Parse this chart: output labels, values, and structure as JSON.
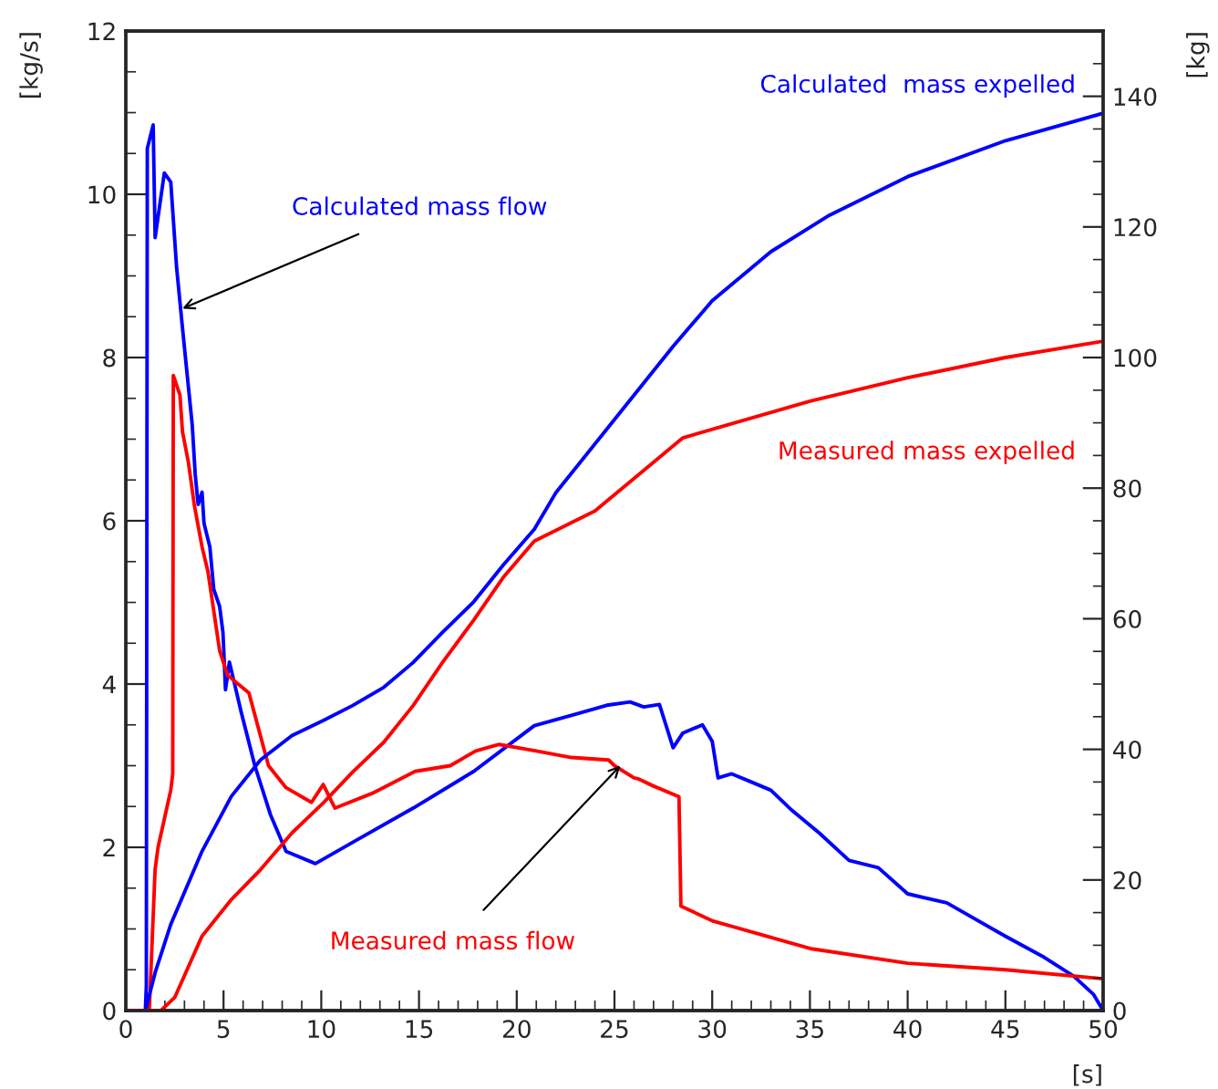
{
  "chart_data": {
    "type": "line",
    "xlabel": "[s]",
    "ylabel": "[kg/s]",
    "y2label": "[kg]",
    "xlim": [
      0,
      50
    ],
    "xticks": [
      0,
      5,
      10,
      15,
      20,
      25,
      30,
      35,
      40,
      45,
      50
    ],
    "ylim": [
      0,
      12
    ],
    "yticks": [
      0,
      2,
      4,
      6,
      8,
      10,
      12
    ],
    "y2lim": [
      0,
      150
    ],
    "y2ticks": [
      0,
      20,
      40,
      60,
      80,
      100,
      120,
      140
    ],
    "grid": false,
    "legend": false,
    "series": [
      {
        "color": "#0000ff",
        "x": [
          0,
          1.0,
          1.05,
          1.1,
          1.4,
          1.5,
          1.97,
          2.3,
          2.6,
          2.9,
          3.4,
          3.55,
          3.7,
          3.9,
          4.0,
          4.3,
          4.5,
          4.8,
          4.97,
          5.1,
          5.3,
          5.9,
          6.6,
          7.4,
          8.2,
          9.7,
          11.6,
          14.7,
          17.8,
          20.9,
          23,
          24.6,
          25.8,
          26.5,
          27.3,
          28,
          28.5,
          29.5,
          30,
          30.3,
          31,
          32,
          33,
          34,
          35.5,
          37,
          38.5,
          40,
          42,
          45,
          47,
          48.5,
          49.5,
          50
        ],
        "values": [
          0,
          0,
          0.3,
          10.56,
          10.85,
          9.47,
          10.26,
          10.15,
          9.1,
          8.36,
          7.17,
          6.57,
          6.2,
          6.35,
          5.97,
          5.68,
          5.16,
          4.95,
          4.63,
          3.93,
          4.27,
          3.66,
          3.0,
          2.4,
          1.95,
          1.8,
          2.06,
          2.48,
          2.93,
          3.49,
          3.63,
          3.74,
          3.78,
          3.72,
          3.75,
          3.22,
          3.4,
          3.5,
          3.3,
          2.85,
          2.9,
          2.8,
          2.7,
          2.47,
          2.17,
          1.84,
          1.75,
          1.43,
          1.32,
          0.91,
          0.65,
          0.42,
          0.2,
          0
        ]
      },
      {
        "color": "#ff0000",
        "x": [
          0,
          1.2,
          1.5,
          1.65,
          2.3,
          2.4,
          2.43,
          2.77,
          2.9,
          3.2,
          3.5,
          3.9,
          4.2,
          4.8,
          5.2,
          6.3,
          7.3,
          8.2,
          9.5,
          10.1,
          10.7,
          12.6,
          14.8,
          16.6,
          17.9,
          19.1,
          21,
          22.8,
          24.7,
          25,
          26,
          26.2,
          27,
          28.3,
          28.4,
          30,
          35,
          40,
          45,
          50
        ],
        "values": [
          0,
          0,
          1.73,
          2.0,
          2.7,
          2.9,
          7.78,
          7.54,
          7.09,
          6.72,
          6.2,
          5.68,
          5.38,
          4.41,
          4.11,
          3.89,
          3.0,
          2.73,
          2.55,
          2.77,
          2.48,
          2.66,
          2.93,
          3.0,
          3.18,
          3.26,
          3.18,
          3.1,
          3.07,
          3.0,
          2.85,
          2.84,
          2.75,
          2.62,
          1.28,
          1.1,
          0.76,
          0.58,
          0.5,
          0.39
        ]
      },
      {
        "name": "Calculated  mass expelled",
        "color": "#0000ff",
        "axis": "y2",
        "x": [
          1.0,
          1.5,
          2.3,
          3.9,
          5.4,
          6.9,
          8.5,
          10.1,
          11.6,
          13.2,
          14.7,
          16.2,
          17.8,
          19.3,
          20.9,
          22,
          25,
          28,
          30,
          33,
          36,
          40,
          45,
          50
        ],
        "values": [
          0,
          5.8,
          13.2,
          24.4,
          32.8,
          38.4,
          42.1,
          44.4,
          46.7,
          49.5,
          53.3,
          57.9,
          62.6,
          68.2,
          73.7,
          79.3,
          90.5,
          101.7,
          108.7,
          116.2,
          121.8,
          127.7,
          133.2,
          137.4
        ]
      },
      {
        "name": "Measured mass expelled",
        "color": "#ff0000",
        "axis": "y2",
        "x": [
          0,
          1.8,
          2.5,
          3.9,
          5.4,
          6.9,
          8.5,
          10.1,
          11.6,
          13.2,
          14.7,
          16.2,
          17.8,
          19.3,
          20.9,
          24,
          28.5,
          35,
          40,
          45,
          50
        ],
        "values": [
          0,
          0,
          2.0,
          11.4,
          17.0,
          21.6,
          27.2,
          31.8,
          36.5,
          41.1,
          46.7,
          53.3,
          59.8,
          66.3,
          71.9,
          76.5,
          87.7,
          93.3,
          96.9,
          100.0,
          102.5
        ]
      }
    ],
    "annotations": [
      {
        "text": "Calculated mass flow",
        "x": 2.9,
        "y": 8.6
      },
      {
        "text": "Measured mass flow",
        "x": 25.3,
        "y": 3.0
      }
    ]
  }
}
